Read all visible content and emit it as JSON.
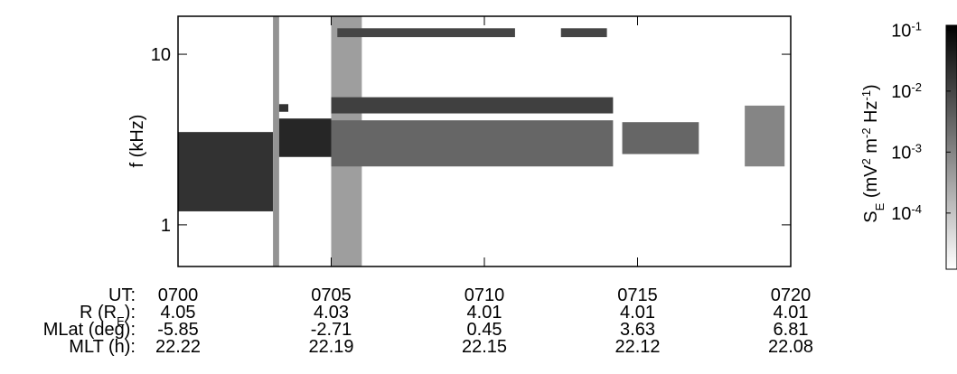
{
  "chart_data": {
    "type": "spectrogram",
    "y_label": "f (kHz)",
    "log_y": true,
    "xlim": [
      420,
      440
    ],
    "xticks": [
      {
        "value": 420,
        "label": "0700"
      },
      {
        "value": 425,
        "label": "0705"
      },
      {
        "value": 430,
        "label": "0710"
      },
      {
        "value": 435,
        "label": "0715"
      },
      {
        "value": 440,
        "label": "0720"
      }
    ],
    "ylim": [
      0.57,
      16.7
    ],
    "yticks": [
      1,
      10
    ],
    "patches": [
      [
        420,
        423.1,
        1.2,
        3.5,
        0.02
      ],
      [
        423.1,
        423.3,
        0.57,
        16.7,
        0.0006
      ],
      [
        423.3,
        425,
        2.5,
        4.2,
        0.03
      ],
      [
        423.3,
        423.6,
        4.6,
        5.1,
        0.02
      ],
      [
        425,
        426,
        0.57,
        16.7,
        0.0004
      ],
      [
        425,
        434.2,
        4.5,
        5.6,
        0.012
      ],
      [
        425,
        434.2,
        2.2,
        4.1,
        0.003
      ],
      [
        425.2,
        431,
        12.6,
        14.2,
        0.01
      ],
      [
        432.5,
        434,
        12.6,
        14.2,
        0.01
      ],
      [
        434.5,
        437,
        2.6,
        4,
        0.003
      ],
      [
        438.5,
        439.8,
        2.2,
        5,
        0.001
      ]
    ],
    "colorbar_label": [
      {
        "text": "S"
      },
      {
        "text": "E",
        "sub": true
      },
      {
        "text": " (mV"
      },
      {
        "text": "2",
        "sup": true
      },
      {
        "text": " m"
      },
      {
        "text": "-2",
        "sup": true
      },
      {
        "text": " Hz"
      },
      {
        "text": "-1",
        "sup": true
      },
      {
        "text": ")"
      }
    ],
    "clim": [
      1.2e-05,
      0.12
    ],
    "cticks": [
      {
        "value": 0.1,
        "label": "10",
        "sup": "-1"
      },
      {
        "value": 0.01,
        "label": "10",
        "sup": "-2"
      },
      {
        "value": 0.001,
        "label": "10",
        "sup": "-3"
      },
      {
        "value": 0.0001,
        "label": "10",
        "sup": "-4"
      }
    ],
    "ephemeris": [
      {
        "label": [
          {
            "text": "UT:"
          }
        ],
        "values": [
          "0700",
          "0705",
          "0710",
          "0715",
          "0720"
        ]
      },
      {
        "label": [
          {
            "text": "R (R"
          },
          {
            "text": "E",
            "sub": true
          },
          {
            "text": "):"
          }
        ],
        "values": [
          "4.05",
          "4.03",
          "4.01",
          "4.01",
          "4.01"
        ]
      },
      {
        "label": [
          {
            "text": "MLat (deg):"
          }
        ],
        "values": [
          "-5.85",
          "-2.71",
          "0.45",
          "3.63",
          "6.81"
        ]
      },
      {
        "label": [
          {
            "text": "MLT (h):"
          }
        ],
        "values": [
          "22.22",
          "22.19",
          "22.15",
          "22.12",
          "22.08"
        ]
      }
    ]
  }
}
